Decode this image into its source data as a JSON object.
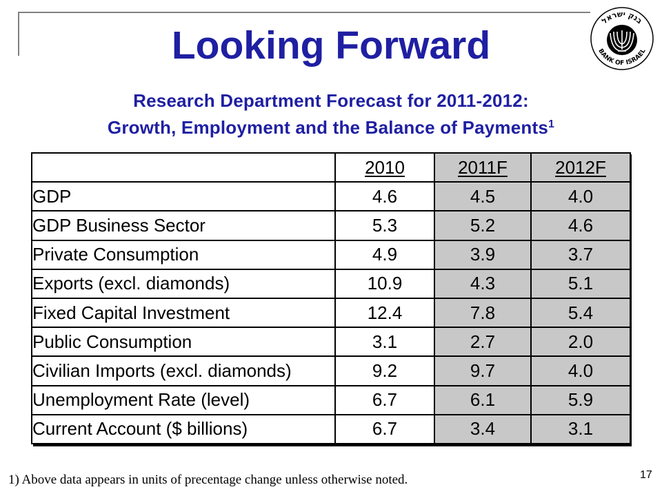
{
  "slide": {
    "title": "Looking Forward",
    "subtitle_line1": "Research Department Forecast for 2011-2012:",
    "subtitle_line2": "Growth, Employment and the Balance of Payments",
    "subtitle_superscript": "1",
    "page_number": "17",
    "footnote": "1) Above data appears in units of precentage change unless otherwise noted.",
    "accent_color": "#1f1fa3"
  },
  "logo": {
    "icon": "bank-of-israel-menorah-seal-icon",
    "hebrew_text": "בנק ישראל",
    "english_text": "BANK OF ISRAEL"
  },
  "table": {
    "headers": [
      "",
      "2010",
      "2011F",
      "2012F"
    ],
    "rows": [
      {
        "label": "GDP",
        "v2010": "4.6",
        "v2011F": "4.5",
        "v2012F": "4.0"
      },
      {
        "label": "GDP Business Sector",
        "v2010": "5.3",
        "v2011F": "5.2",
        "v2012F": "4.6"
      },
      {
        "label": "Private Consumption",
        "v2010": "4.9",
        "v2011F": "3.9",
        "v2012F": "3.7"
      },
      {
        "label": "Exports (excl. diamonds)",
        "v2010": "10.9",
        "v2011F": "4.3",
        "v2012F": "5.1"
      },
      {
        "label": "Fixed Capital Investment",
        "v2010": "12.4",
        "v2011F": "7.8",
        "v2012F": "5.4"
      },
      {
        "label": "Public Consumption",
        "v2010": "3.1",
        "v2011F": "2.7",
        "v2012F": "2.0"
      },
      {
        "label": "Civilian Imports (excl. diamonds)",
        "v2010": "9.2",
        "v2011F": "9.7",
        "v2012F": "4.0"
      },
      {
        "label": "Unemployment Rate (level)",
        "v2010": "6.7",
        "v2011F": "6.1",
        "v2012F": "5.9"
      },
      {
        "label": "Current Account ($ billions)",
        "v2010": "6.7",
        "v2011F": "3.4",
        "v2012F": "3.1"
      }
    ],
    "shaded_color": "#c8c8c8"
  }
}
